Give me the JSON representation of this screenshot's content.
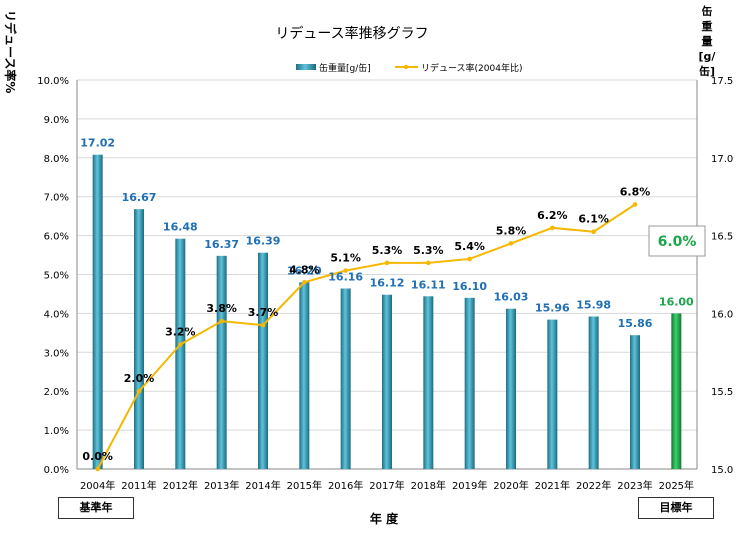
{
  "chart_data": {
    "type": "bar+line",
    "title": "リデュース率推移グラフ",
    "xlabel": "年 度",
    "ylabel_left": "リデュース率%",
    "ylabel_right": "缶重量[g/缶]",
    "categories": [
      "2004年",
      "2011年",
      "2012年",
      "2013年",
      "2014年",
      "2015年",
      "2016年",
      "2017年",
      "2018年",
      "2019年",
      "2020年",
      "2021年",
      "2022年",
      "2023年",
      "2025年"
    ],
    "bar_series": {
      "name": "缶重量[g/缶]",
      "axis": "right",
      "values": [
        17.02,
        16.67,
        16.48,
        16.37,
        16.39,
        16.2,
        16.16,
        16.12,
        16.11,
        16.1,
        16.03,
        15.96,
        15.98,
        15.86,
        16.0
      ],
      "labels": [
        "17.02",
        "16.67",
        "16.48",
        "16.37",
        "16.39",
        "16.20",
        "16.16",
        "16.12",
        "16.11",
        "16.10",
        "16.03",
        "15.96",
        "15.98",
        "15.86",
        "16.00"
      ],
      "color": "#2a8fa8",
      "target_color": "#1aa64a",
      "label_color": "#1f6fb5",
      "target_label_color": "#1aa64a"
    },
    "line_series": {
      "name": "リデュース率(2004年比)",
      "axis": "left",
      "values": [
        0.0,
        2.0,
        3.2,
        3.8,
        3.7,
        4.8,
        5.1,
        5.3,
        5.3,
        5.4,
        5.8,
        6.2,
        6.1,
        6.8
      ],
      "labels": [
        "0.0%",
        "2.0%",
        "3.2%",
        "3.8%",
        "3.7%",
        "4.8%",
        "5.1%",
        "5.3%",
        "5.3%",
        "5.4%",
        "5.8%",
        "6.2%",
        "6.1%",
        "6.8%"
      ],
      "color": "#f5b800"
    },
    "target_rate_label": "6.0%",
    "yleft_ticks": [
      "0.0%",
      "1.0%",
      "2.0%",
      "3.0%",
      "4.0%",
      "5.0%",
      "6.0%",
      "7.0%",
      "8.0%",
      "9.0%",
      "10.0%"
    ],
    "yleft_lim": [
      0,
      10
    ],
    "yright_ticks": [
      "15.0",
      "15.5",
      "16.0",
      "16.5",
      "17.0",
      "17.5"
    ],
    "yright_lim": [
      15.0,
      17.5
    ],
    "grid": true,
    "legend_position": "top"
  },
  "base_year_label": "基準年",
  "target_year_label": "目標年"
}
